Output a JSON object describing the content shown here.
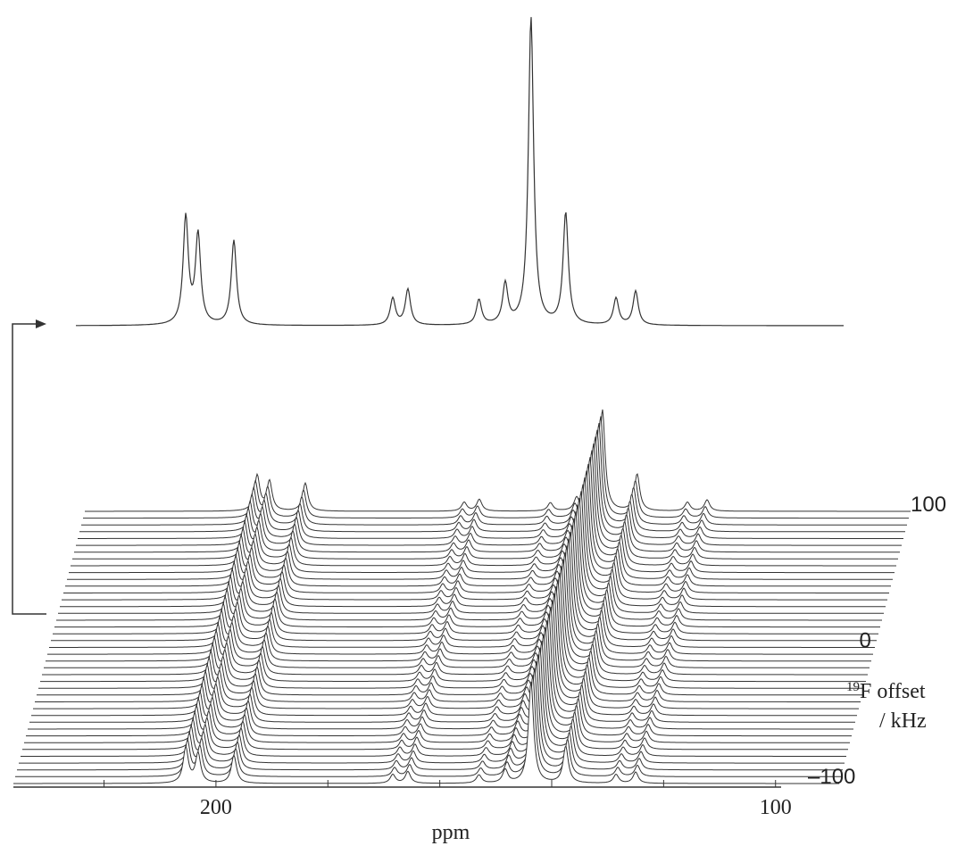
{
  "chart_data": {
    "type": "waterfall",
    "xlabel": "ppm",
    "xlim": [
      236.2,
      99.0
    ],
    "xticks": [
      200,
      100
    ],
    "xminor_ticks": [
      220,
      180,
      160,
      140,
      120
    ],
    "ylabel": {
      "sup": "19",
      "text": "F offset",
      "unit": "/ kHz"
    },
    "ylim": [
      -100,
      100
    ],
    "yticks": [
      100,
      0,
      {
        "value": -100,
        "label": "–100"
      }
    ],
    "slices": [
      -100,
      -95,
      -90,
      -85,
      -80,
      -75,
      -70,
      -65,
      -60,
      -55,
      -50,
      -45,
      -40,
      -35,
      -30,
      -25,
      -20,
      -15,
      -10,
      -5,
      0,
      5,
      10,
      15,
      20,
      25,
      30,
      35,
      40,
      45,
      50,
      55,
      60,
      65,
      70,
      75,
      80,
      85,
      90,
      95,
      100
    ],
    "peaks": {
      "ppm": [
        205.4,
        203.2,
        196.8,
        168.4,
        165.7,
        153.0,
        148.3,
        143.7,
        137.5,
        128.5,
        125.0
      ],
      "intensity": [
        120,
        100,
        95,
        30,
        40,
        28,
        45,
        345,
        125,
        30,
        38
      ]
    },
    "color": "#333333"
  }
}
